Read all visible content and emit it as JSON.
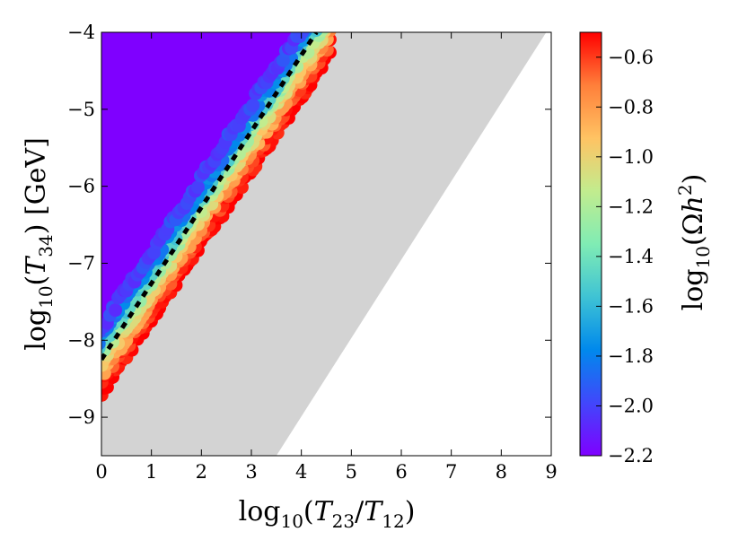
{
  "chart_data": {
    "type": "scatter",
    "title": "",
    "xlabel": {
      "prefix": "log",
      "prefix_sub": "10",
      "open": "(",
      "num_var": "T",
      "num_sub": "23",
      "slash": "/",
      "den_var": "T",
      "den_sub": "12",
      "close": ")"
    },
    "ylabel": {
      "prefix": "log",
      "prefix_sub": "10",
      "open": "(",
      "var": "T",
      "var_sub": "34",
      "close": ")",
      "unit": "[GeV]"
    },
    "xlim": [
      0,
      9
    ],
    "ylim": [
      -9.5,
      -4
    ],
    "x_ticks": [
      0,
      1,
      2,
      3,
      4,
      5,
      6,
      7,
      8,
      9
    ],
    "x_tick_labels": [
      "0",
      "1",
      "2",
      "3",
      "4",
      "5",
      "6",
      "7",
      "8",
      "9"
    ],
    "y_ticks": [
      -9,
      -8,
      -7,
      -6,
      -5,
      -4
    ],
    "y_tick_labels": [
      "−9",
      "−8",
      "−7",
      "−6",
      "−5",
      "−4"
    ],
    "grid": false,
    "regions": {
      "saturated_low": {
        "color": "#7f00ff",
        "value": -2.2,
        "boundary_at_top": -4,
        "left_edge_y_at_x0": -7.8,
        "boundary_slope": 0.955
      },
      "excluded_gray": {
        "color": "#d3d3d3",
        "upper_edge": [
          [
            4.6,
            -4
          ],
          [
            0,
            -8.7
          ]
        ],
        "lower_edge": [
          [
            8.9,
            -4
          ],
          [
            3.5,
            -9.5
          ]
        ]
      }
    },
    "scatter_band": {
      "description_free": true,
      "x_range": [
        0,
        4.6
      ],
      "center_line": [
        [
          0,
          -8.25
        ],
        [
          4.4,
          -4.0
        ]
      ],
      "offset_values": [
        {
          "offset": -0.42,
          "value": -0.5
        },
        {
          "offset": -0.3,
          "value": -0.6
        },
        {
          "offset": -0.18,
          "value": -0.8
        },
        {
          "offset": -0.06,
          "value": -1.0
        },
        {
          "offset": 0.06,
          "value": -1.2
        },
        {
          "offset": 0.18,
          "value": -1.5
        },
        {
          "offset": 0.3,
          "value": -1.8
        },
        {
          "offset": 0.42,
          "value": -2.0
        }
      ]
    },
    "dashed_line": {
      "color": "#000000",
      "points": [
        [
          0,
          -8.25
        ],
        [
          4.3,
          -4.0
        ]
      ]
    },
    "colorbar": {
      "colormap": "rainbow",
      "range": [
        -2.2,
        -0.5
      ],
      "ticks": [
        -2.2,
        -2.0,
        -1.8,
        -1.6,
        -1.4,
        -1.2,
        -1.0,
        -0.8,
        -0.6
      ],
      "tick_labels": [
        "−2.2",
        "−2.0",
        "−1.8",
        "−1.6",
        "−1.4",
        "−1.2",
        "−1.0",
        "−0.8",
        "−0.6"
      ],
      "label": {
        "prefix": "log",
        "prefix_sub": "10",
        "open": "(",
        "omega": "Ω",
        "h": "h",
        "h_sup": "2",
        "close": ")"
      }
    }
  }
}
